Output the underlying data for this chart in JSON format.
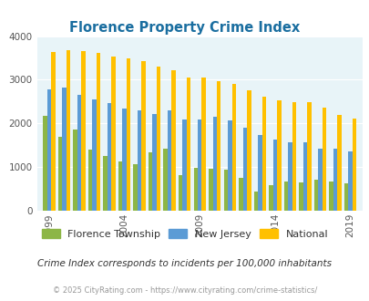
{
  "title": "Florence Property Crime Index",
  "years": [
    1999,
    2000,
    2001,
    2002,
    2003,
    2004,
    2005,
    2006,
    2007,
    2008,
    2009,
    2010,
    2011,
    2012,
    2013,
    2014,
    2015,
    2016,
    2017,
    2018,
    2019
  ],
  "florence": [
    2180,
    1700,
    1870,
    1400,
    1250,
    1130,
    1060,
    1330,
    1430,
    820,
    980,
    960,
    930,
    760,
    430,
    580,
    660,
    650,
    710,
    660,
    620
  ],
  "new_jersey": [
    2780,
    2830,
    2650,
    2560,
    2460,
    2350,
    2300,
    2220,
    2300,
    2080,
    2080,
    2150,
    2070,
    1900,
    1730,
    1640,
    1560,
    1560,
    1430,
    1430,
    1360
  ],
  "national": [
    3640,
    3670,
    3650,
    3620,
    3530,
    3490,
    3430,
    3300,
    3210,
    3050,
    3050,
    2960,
    2910,
    2760,
    2620,
    2530,
    2480,
    2490,
    2370,
    2200,
    2110
  ],
  "florence_color": "#8db646",
  "nj_color": "#5b9bd5",
  "national_color": "#ffc000",
  "bg_color": "#e8f4f8",
  "title_color": "#1a6ea0",
  "legend_labels": [
    "Florence Township",
    "New Jersey",
    "National"
  ],
  "subtitle": "Crime Index corresponds to incidents per 100,000 inhabitants",
  "footer": "© 2025 CityRating.com - https://www.cityrating.com/crime-statistics/",
  "ylim": [
    0,
    4000
  ],
  "yticks": [
    0,
    1000,
    2000,
    3000,
    4000
  ],
  "tick_years": [
    1999,
    2004,
    2009,
    2014,
    2019
  ]
}
